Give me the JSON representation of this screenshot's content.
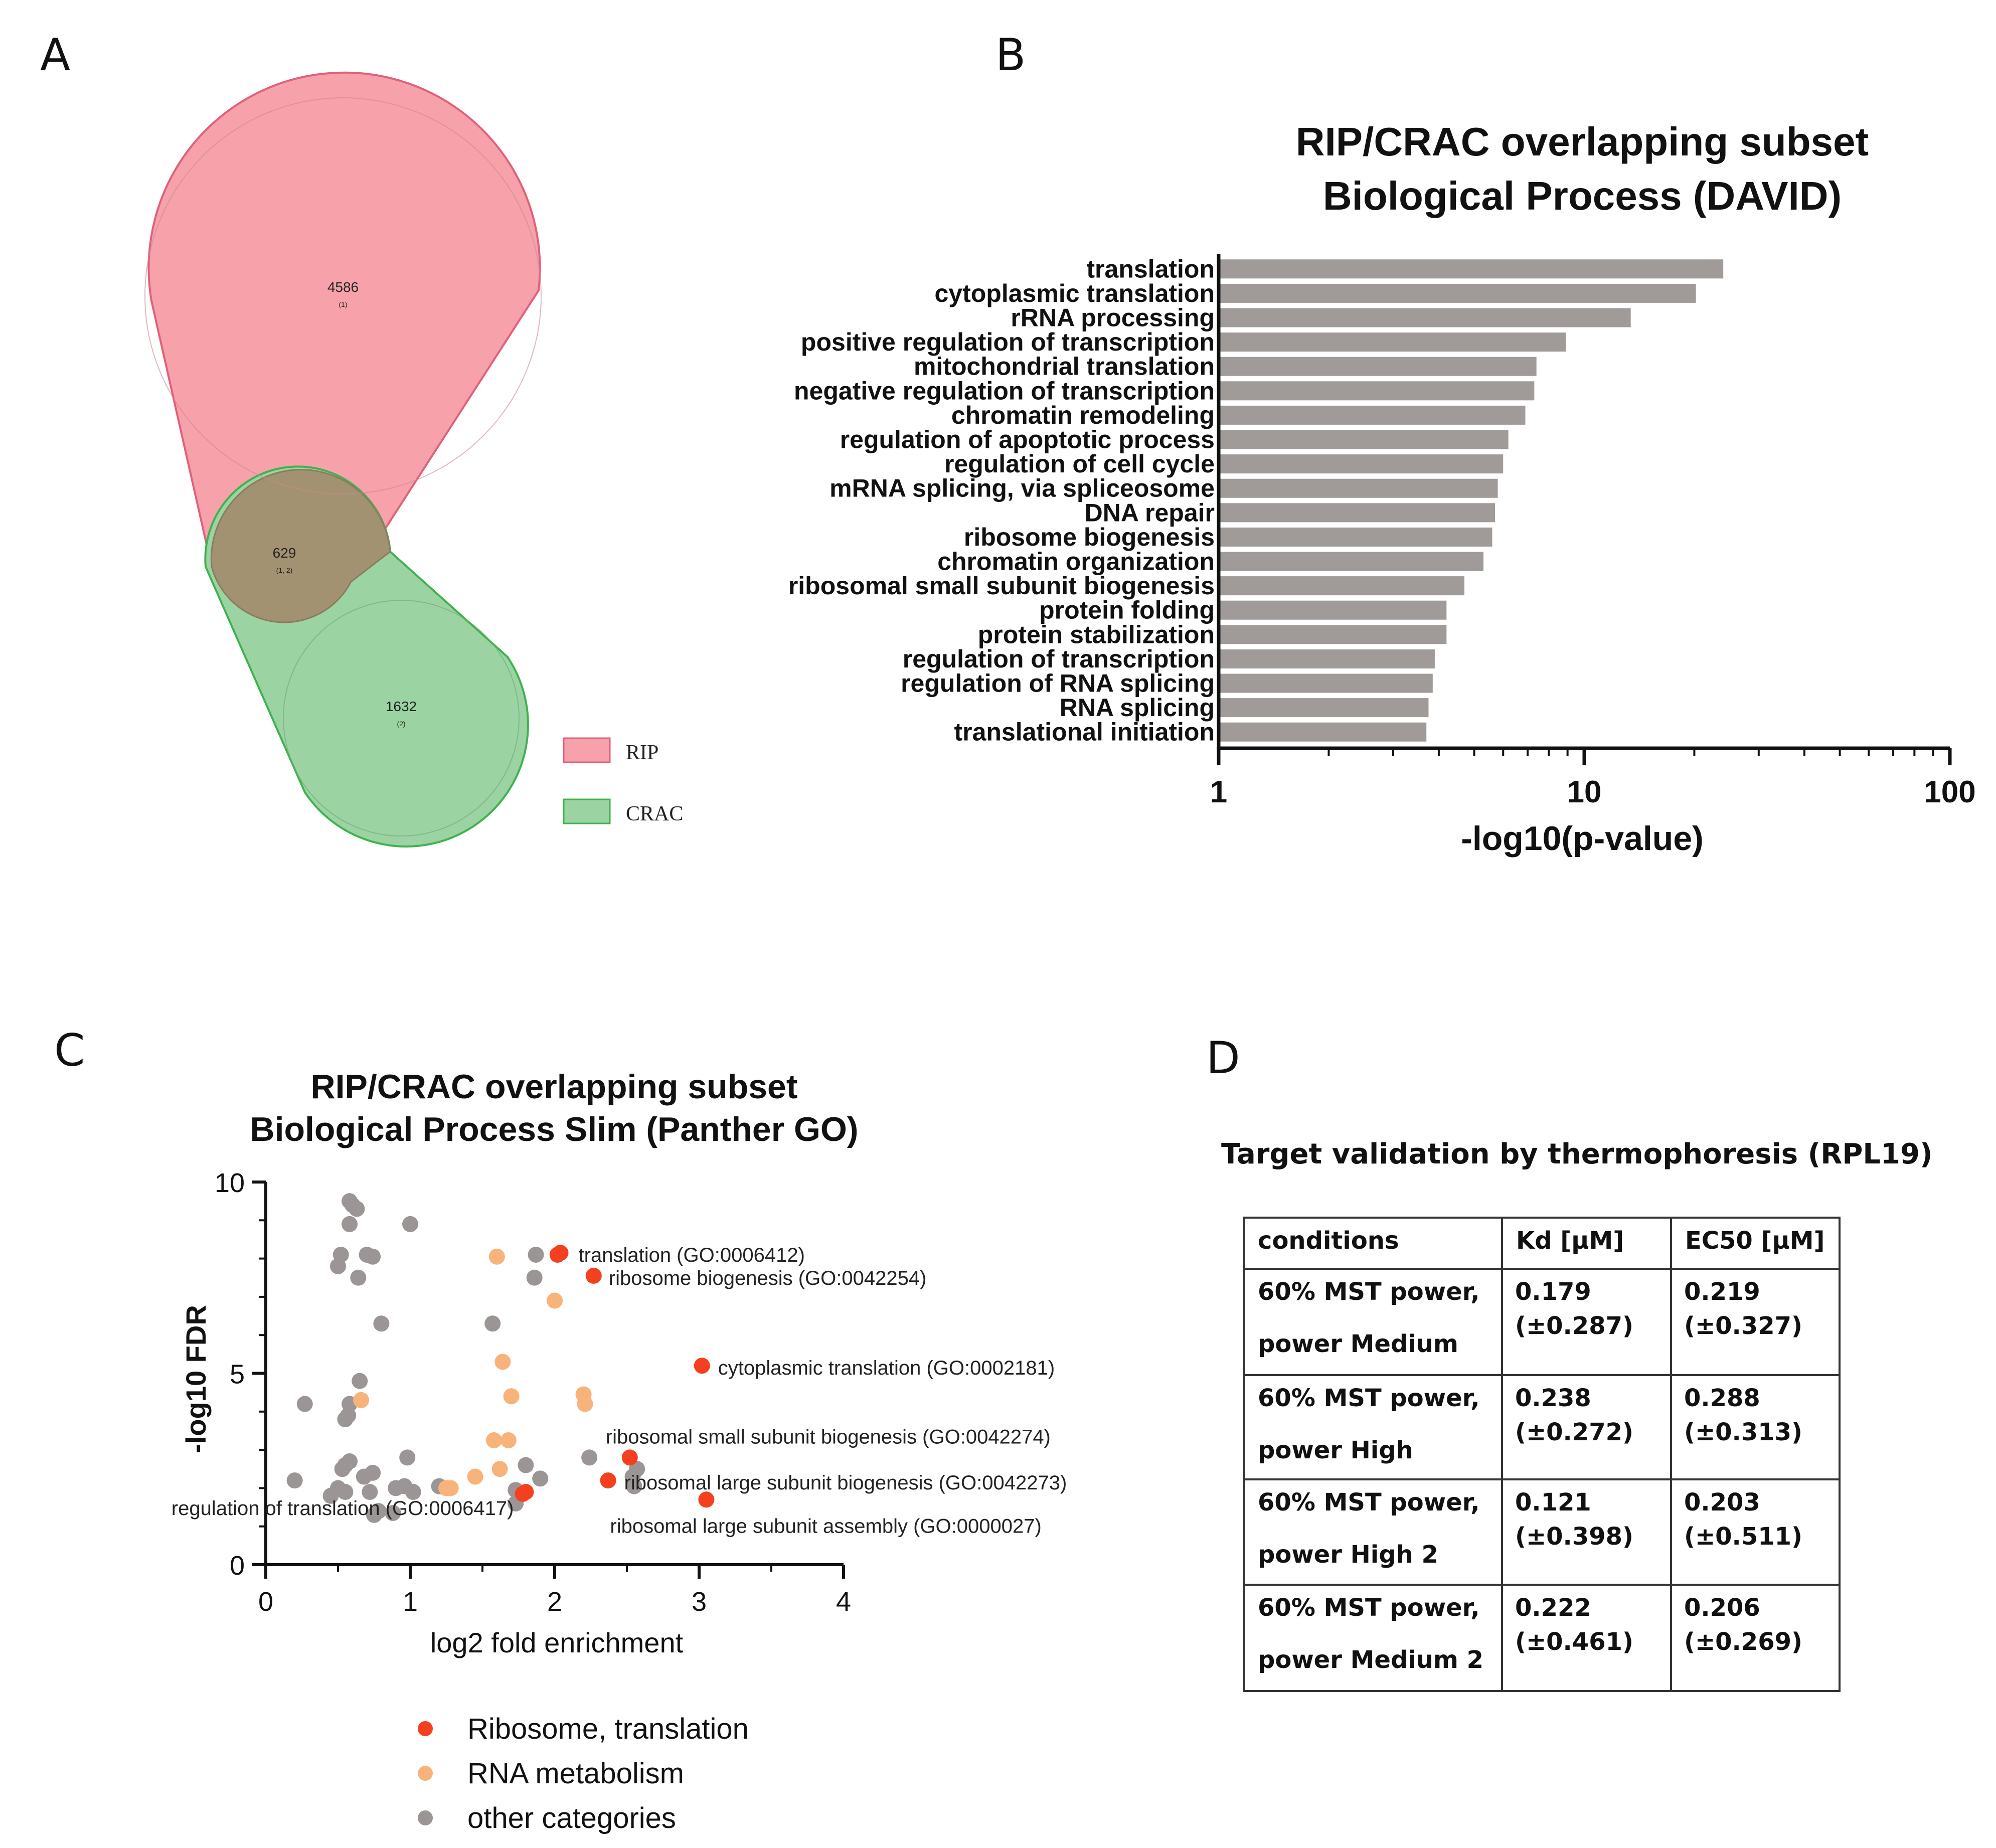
{
  "panels": {
    "a": "A",
    "b": "B",
    "c": "C",
    "d": "D"
  },
  "colors": {
    "rip_fill": "#f7a1aa",
    "rip_stroke": "#e0607a",
    "crac_fill": "#9bd4a2",
    "crac_stroke": "#3fb24f",
    "overlap_fill": "#a39271",
    "bar": "#a09a98",
    "ribosome": "#f4401e",
    "rna": "#f7b37a",
    "other": "#9b9595"
  },
  "venn": {
    "rip_count": "4586",
    "rip_code": "(1)",
    "overlap_count": "629",
    "overlap_code": "(1, 2)",
    "crac_count": "1632",
    "crac_code": "(2)",
    "legend": [
      {
        "label": "RIP",
        "color": "#f7a1aa"
      },
      {
        "label": "CRAC",
        "color": "#9bd4a2"
      }
    ]
  },
  "chart_data": [
    {
      "type": "bar",
      "orientation": "horizontal",
      "title": "RIP/CRAC overlapping subset\nBiological Process (DAVID)",
      "title_lines": [
        "RIP/CRAC overlapping subset",
        "Biological Process (DAVID)"
      ],
      "xlabel": "-log10(p-value)",
      "xscale": "log",
      "xlim": [
        1,
        100
      ],
      "xticks": [
        "1",
        "10",
        "100"
      ],
      "categories": [
        "translation",
        "cytoplasmic translation",
        "rRNA processing",
        "positive regulation of transcription",
        "mitochondrial translation",
        "negative regulation of transcription",
        "chromatin remodeling",
        "regulation of apoptotic process",
        "regulation of cell cycle",
        "mRNA splicing, via spliceosome",
        "DNA repair",
        "ribosome biogenesis",
        "chromatin organization",
        "ribosomal small subunit biogenesis",
        "protein folding",
        "protein stabilization",
        "regulation of transcription",
        "regulation of RNA splicing",
        "RNA splicing",
        "translational initiation"
      ],
      "values": [
        24.0,
        20.2,
        13.4,
        8.9,
        7.4,
        7.3,
        6.9,
        6.2,
        6.0,
        5.8,
        5.7,
        5.6,
        5.3,
        4.7,
        4.2,
        4.2,
        3.9,
        3.85,
        3.75,
        3.7
      ]
    },
    {
      "type": "scatter",
      "title": "RIP/CRAC overlapping subset\nBiological Process Slim (Panther GO)",
      "title_lines": [
        "RIP/CRAC overlapping subset",
        "Biological Process Slim (Panther GO)"
      ],
      "xlabel": "log2 fold enrichment",
      "ylabel": "-log10 FDR",
      "xlim": [
        0,
        4
      ],
      "ylim": [
        0,
        10
      ],
      "xticks": [
        "0",
        "1",
        "2",
        "3",
        "4"
      ],
      "yticks": [
        "0",
        "5",
        "10"
      ],
      "legend_placement": "bottom",
      "series": [
        {
          "name": "Ribosome, translation",
          "color": "#f4401e",
          "points": [
            [
              2.04,
              8.15
            ],
            [
              2.02,
              8.1
            ],
            [
              2.27,
              7.55
            ],
            [
              3.02,
              5.2
            ],
            [
              2.52,
              2.8
            ],
            [
              2.37,
              2.2
            ],
            [
              3.05,
              1.7
            ],
            [
              1.8,
              1.9
            ],
            [
              1.78,
              1.85
            ]
          ],
          "annotations": [
            {
              "text": "translation (GO:0006412)",
              "x": 2.04,
              "y": 8.15
            },
            {
              "text": "ribosome biogenesis (GO:0042254)",
              "x": 2.27,
              "y": 7.55
            },
            {
              "text": "cytoplasmic translation (GO:0002181)",
              "x": 3.02,
              "y": 5.2
            },
            {
              "text": "ribosomal small subunit biogenesis (GO:0042274)",
              "x": 2.52,
              "y": 2.8
            },
            {
              "text": "ribosomal large subunit biogenesis (GO:0042273)",
              "x": 2.37,
              "y": 2.2
            },
            {
              "text": "regulation of translation (GO:0006417)",
              "x": 1.8,
              "y": 1.9
            },
            {
              "text": "ribosomal large subunit assembly (GO:0000027)",
              "x": 3.05,
              "y": 1.7
            }
          ]
        },
        {
          "name": "RNA metabolism",
          "color": "#f7b37a",
          "points": [
            [
              1.6,
              8.05
            ],
            [
              2.0,
              6.9
            ],
            [
              1.64,
              5.3
            ],
            [
              1.7,
              4.4
            ],
            [
              2.2,
              4.45
            ],
            [
              2.21,
              4.2
            ],
            [
              1.58,
              3.25
            ],
            [
              1.68,
              3.25
            ],
            [
              1.62,
              2.5
            ],
            [
              1.45,
              2.3
            ],
            [
              1.25,
              2.0
            ],
            [
              1.28,
              2.0
            ],
            [
              0.66,
              4.3
            ]
          ]
        },
        {
          "name": "other categories",
          "color": "#9b9595",
          "points": [
            [
              0.58,
              9.5
            ],
            [
              0.6,
              9.4
            ],
            [
              0.63,
              9.3
            ],
            [
              0.58,
              8.9
            ],
            [
              1.0,
              8.9
            ],
            [
              0.52,
              8.1
            ],
            [
              0.5,
              7.8
            ],
            [
              0.7,
              8.1
            ],
            [
              0.74,
              8.05
            ],
            [
              0.64,
              7.5
            ],
            [
              1.87,
              8.1
            ],
            [
              1.86,
              7.5
            ],
            [
              0.8,
              6.3
            ],
            [
              1.57,
              6.3
            ],
            [
              0.65,
              4.8
            ],
            [
              0.58,
              4.2
            ],
            [
              0.55,
              3.8
            ],
            [
              0.57,
              3.9
            ],
            [
              0.27,
              4.2
            ],
            [
              0.2,
              2.2
            ],
            [
              0.55,
              2.6
            ],
            [
              0.58,
              2.7
            ],
            [
              0.53,
              2.5
            ],
            [
              0.5,
              2.0
            ],
            [
              0.55,
              1.9
            ],
            [
              0.45,
              1.8
            ],
            [
              0.68,
              2.3
            ],
            [
              0.74,
              2.4
            ],
            [
              0.72,
              1.9
            ],
            [
              0.9,
              2.0
            ],
            [
              0.96,
              2.05
            ],
            [
              1.02,
              1.9
            ],
            [
              0.98,
              2.8
            ],
            [
              0.78,
              1.4
            ],
            [
              0.75,
              1.3
            ],
            [
              0.88,
              1.35
            ],
            [
              1.2,
              2.05
            ],
            [
              1.73,
              1.95
            ],
            [
              1.9,
              2.25
            ],
            [
              1.8,
              2.6
            ],
            [
              2.24,
              2.8
            ],
            [
              2.57,
              2.5
            ],
            [
              2.54,
              2.3
            ],
            [
              2.55,
              2.05
            ],
            [
              1.73,
              1.6
            ]
          ]
        }
      ]
    },
    {
      "type": "table",
      "title": "Target validation by thermophoresis (RPL19)",
      "columns": [
        "conditions",
        "Kd [µM]",
        "EC50 [µM]"
      ],
      "rows": [
        {
          "cond": [
            "60% MST power,",
            "power Medium"
          ],
          "kd": [
            "0.179",
            "(±0.287)"
          ],
          "ec": [
            "0.219",
            "(±0.327)"
          ]
        },
        {
          "cond": [
            "60% MST power,",
            "power High"
          ],
          "kd": [
            "0.238",
            "(±0.272)"
          ],
          "ec": [
            "0.288",
            "(±0.313)"
          ]
        },
        {
          "cond": [
            "60% MST power,",
            "power High 2"
          ],
          "kd": [
            "0.121",
            "(±0.398)"
          ],
          "ec": [
            "0.203",
            "(±0.511)"
          ]
        },
        {
          "cond": [
            "60% MST power,",
            "power Medium 2"
          ],
          "kd": [
            "0.222",
            "(±0.461)"
          ],
          "ec": [
            "0.206",
            "(±0.269)"
          ]
        }
      ]
    }
  ]
}
